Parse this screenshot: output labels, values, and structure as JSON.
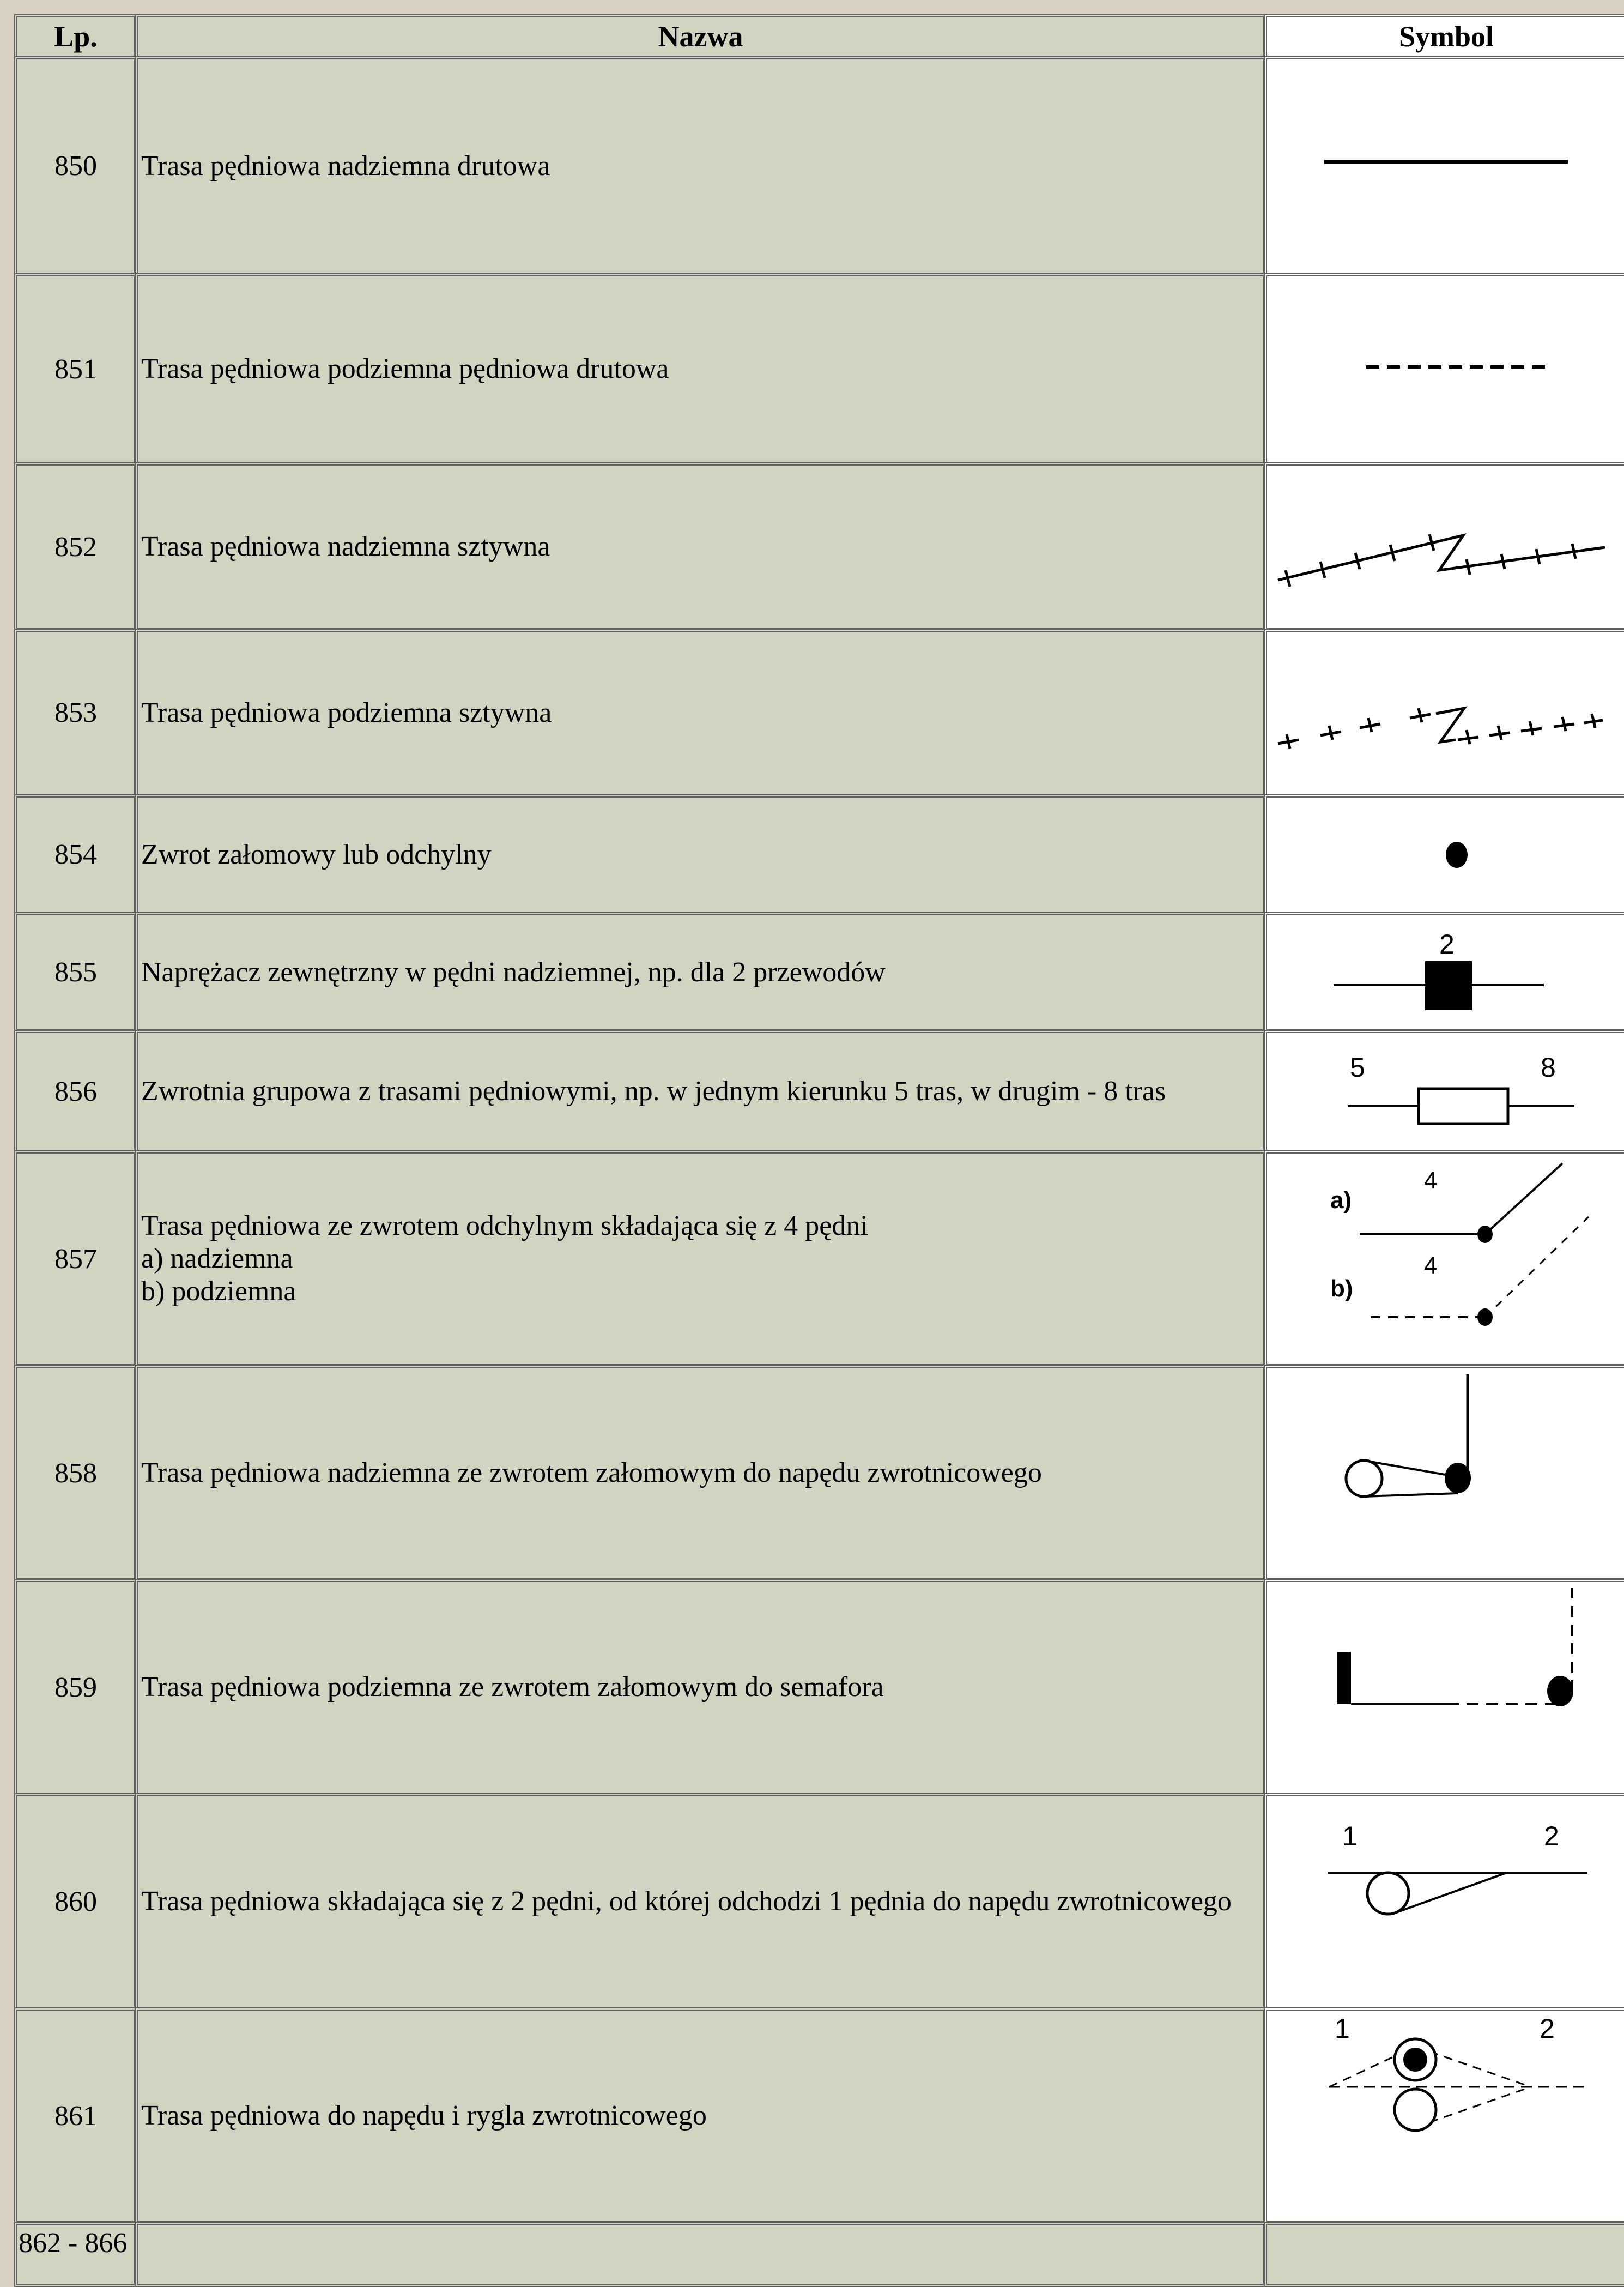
{
  "table": {
    "headers": {
      "lp": "Lp.",
      "name": "Nazwa",
      "symbol": "Symbol"
    },
    "rows": [
      {
        "lp": "850",
        "name": [
          "Trasa pędniowa nadziemna drutowa"
        ],
        "symbol_icon": "solid-line-icon",
        "symbol_labels": []
      },
      {
        "lp": "851",
        "name": [
          "Trasa pędniowa podziemna pędniowa drutowa"
        ],
        "symbol_icon": "dashed-line-icon",
        "symbol_labels": []
      },
      {
        "lp": "852",
        "name": [
          "Trasa pędniowa nadziemna sztywna"
        ],
        "symbol_icon": "rigid-overhead-line-icon",
        "symbol_labels": []
      },
      {
        "lp": "853",
        "name": [
          "Trasa pędniowa podziemna sztywna"
        ],
        "symbol_icon": "rigid-underground-line-icon",
        "symbol_labels": []
      },
      {
        "lp": "854",
        "name": [
          "Zwrot załomowy lub odchylny"
        ],
        "symbol_icon": "dot-icon",
        "symbol_labels": []
      },
      {
        "lp": "855",
        "name": [
          "Naprężacz zewnętrzny w pędni nadziemnej, np. dla 2 przewodów"
        ],
        "symbol_icon": "tensioner-icon",
        "symbol_labels": [
          "2"
        ]
      },
      {
        "lp": "856",
        "name": [
          "Zwrotnia grupowa z trasami pędniowymi, np. w jednym kierunku 5 tras, w drugim - 8 tras"
        ],
        "symbol_icon": "group-switch-icon",
        "symbol_labels": [
          "5",
          "8"
        ]
      },
      {
        "lp": "857",
        "name": [
          "Trasa pędniowa ze zwrotem odchylnym składająca się z 4 pędni",
          "a) nadziemna",
          "b) podziemna"
        ],
        "symbol_icon": "deflecting-turn-icon",
        "symbol_labels": [
          "a)",
          "4",
          "b)",
          "4"
        ]
      },
      {
        "lp": "858",
        "name": [
          "Trasa pędniowa nadziemna ze zwrotem załomowym do napędu zwrotnicowego"
        ],
        "symbol_icon": "overhead-turn-to-drive-icon",
        "symbol_labels": []
      },
      {
        "lp": "859",
        "name": [
          "Trasa pędniowa podziemna ze zwrotem załomowym do semafora"
        ],
        "symbol_icon": "underground-turn-to-signal-icon",
        "symbol_labels": []
      },
      {
        "lp": "860",
        "name": [
          "Trasa pędniowa składająca się z 2 pędni, od której odchodzi 1 pędnia do napędu zwrotnicowego"
        ],
        "symbol_icon": "branch-to-drive-icon",
        "symbol_labels": [
          "1",
          "2"
        ]
      },
      {
        "lp": "861",
        "name": [
          "Trasa pędniowa do napędu i rygla zwrotnicowego"
        ],
        "symbol_icon": "drive-and-lock-icon",
        "symbol_labels": [
          "1",
          "2"
        ]
      },
      {
        "lp": "862 - 866",
        "name": [],
        "symbol_icon": "",
        "symbol_labels": []
      }
    ]
  }
}
